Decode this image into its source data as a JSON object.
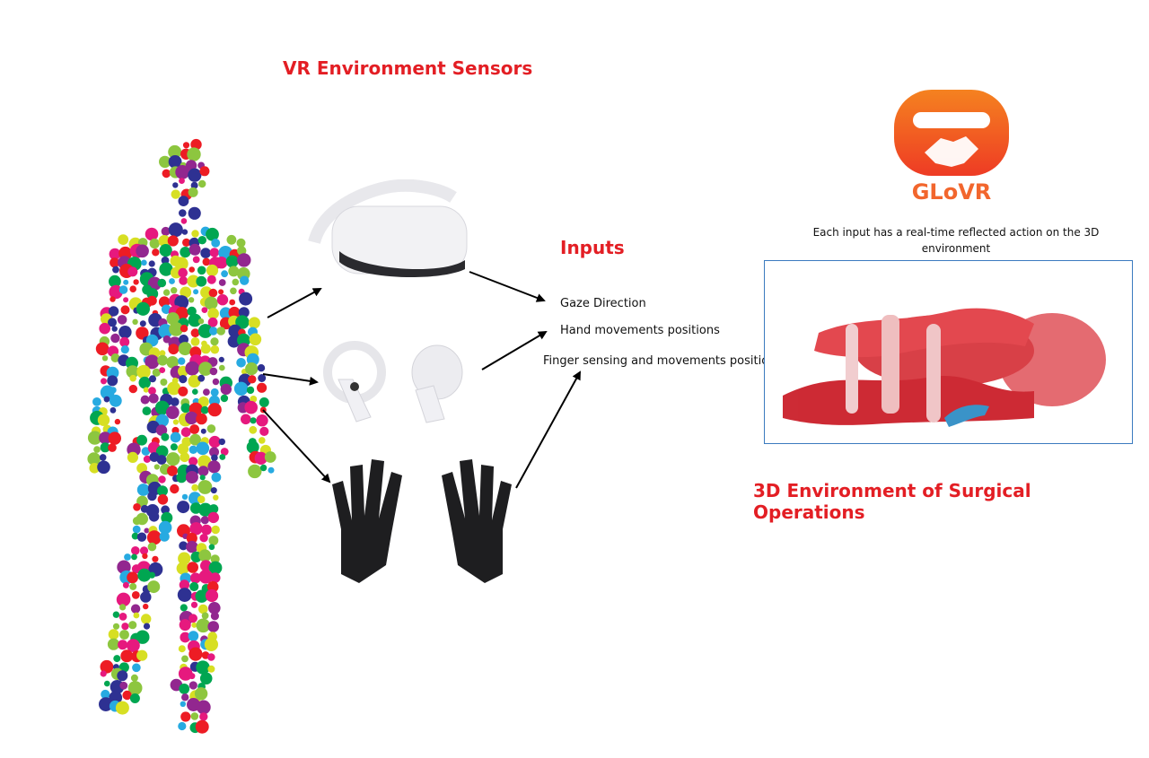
{
  "headings": {
    "sensors": "VR Environment Sensors",
    "inputs": "Inputs",
    "surgical": "3D Environment of Surgical Operations"
  },
  "inputs": [
    "Gaze Direction",
    "Hand movements positions",
    "Finger sensing and movements positions"
  ],
  "logo": {
    "text": "GLoVR",
    "color": "#f2662d"
  },
  "caption": {
    "line1": "Each input has a real-time reflected action on the 3D",
    "line2": "environment"
  },
  "colors": {
    "heading_red": "#e31e24",
    "panel_border": "#3b7bbf",
    "dots": [
      "#e6197e",
      "#2e3192",
      "#27aae1",
      "#8dc63f",
      "#ed1c24",
      "#00a651",
      "#d7df23",
      "#92278f"
    ]
  }
}
